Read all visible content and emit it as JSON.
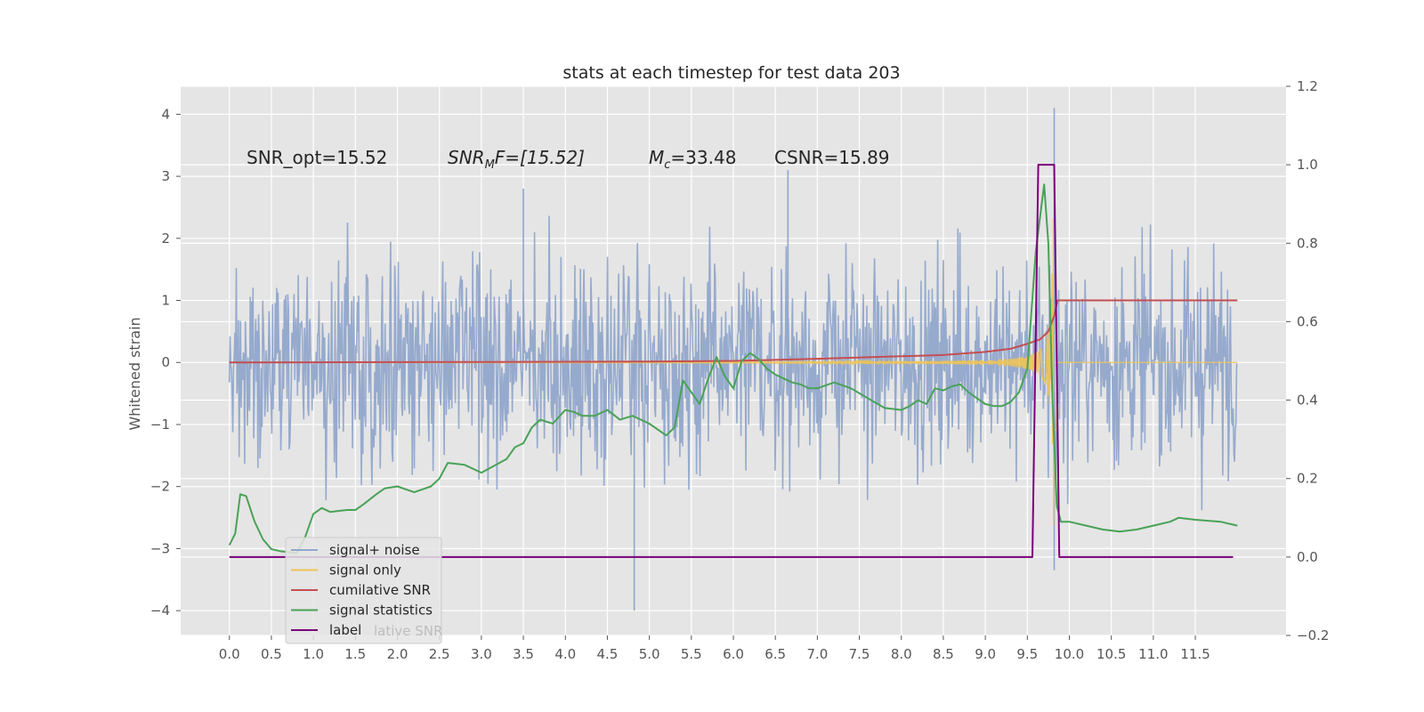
{
  "chart_data": {
    "type": "line",
    "title": "stats at each timestep for test data 203",
    "ylabel": "Whitened strain",
    "xlabel": "",
    "xlim": [
      -0.58,
      12.58
    ],
    "ylim": [
      -4.4,
      4.45
    ],
    "y2lim": [
      -0.2,
      1.2
    ],
    "xticks": [
      "0.0",
      "0.5",
      "1.0",
      "1.5",
      "2.0",
      "2.5",
      "3.0",
      "3.5",
      "4.0",
      "4.5",
      "5.0",
      "5.5",
      "6.0",
      "6.5",
      "7.0",
      "7.5",
      "8.0",
      "8.5",
      "9.0",
      "9.5",
      "10.0",
      "10.5",
      "11.0",
      "11.5"
    ],
    "yticks": [
      "4",
      "3",
      "2",
      "1",
      "0",
      "−1",
      "−2",
      "−3",
      "−4"
    ],
    "y2ticks": [
      "1.2",
      "1.0",
      "0.8",
      "0.6",
      "0.4",
      "0.2",
      "0.0",
      "−0.2"
    ],
    "grid": true,
    "legend_position": "lower-left",
    "annotations": {
      "snr_opt": "SNR_opt=15.52",
      "snr_mf_main": "SNR",
      "snr_mf_sub": "M",
      "snr_mf_rest": "F=[15.52]",
      "mc_main": "M",
      "mc_sub": "c",
      "mc_rest": "=33.48",
      "csnr": "CSNR=15.89"
    },
    "legend": {
      "items": [
        {
          "label": "signal+ noise",
          "color": "#91a6cb"
        },
        {
          "label": "signal only",
          "color": "#f0c455"
        },
        {
          "label": "cumilative SNR",
          "color": "#c44e52"
        },
        {
          "label": "signal statistics",
          "color": "#49a257"
        },
        {
          "label": "label",
          "color": "#7a007a"
        }
      ],
      "ghost_text": "lative SNR"
    },
    "series": [
      {
        "name": "signal+ noise",
        "axis": "left",
        "color": "#91a6cb",
        "description": "whitened strain, dense noise band",
        "x_range": [
          0,
          12.0
        ],
        "typical_envelope": [
          -1.6,
          1.7
        ],
        "spikes": [
          {
            "x": 4.82,
            "y": -4.0
          },
          {
            "x": 9.82,
            "y": 4.1
          },
          {
            "x": 6.65,
            "y": 3.1
          },
          {
            "x": 3.5,
            "y": 2.8
          },
          {
            "x": 9.82,
            "y": -3.35
          }
        ]
      },
      {
        "name": "signal only",
        "axis": "left",
        "color": "#f0c455",
        "description": "chirp waveform growing toward merger",
        "x_range": [
          0,
          12.0
        ],
        "peak_x": 9.8,
        "peak_amplitude": 2.8
      },
      {
        "name": "cumilative SNR",
        "axis": "left",
        "color": "#c44e52",
        "x": [
          0,
          1,
          2,
          3,
          4,
          5,
          6,
          7,
          8,
          8.5,
          9.0,
          9.3,
          9.5,
          9.65,
          9.75,
          9.82,
          9.86,
          10.0,
          12.0
        ],
        "values": [
          0,
          0.002,
          0.005,
          0.008,
          0.01,
          0.015,
          0.025,
          0.06,
          0.1,
          0.12,
          0.17,
          0.22,
          0.3,
          0.37,
          0.5,
          0.75,
          1.0,
          1.0,
          1.0
        ]
      },
      {
        "name": "signal statistics",
        "axis": "right",
        "color": "#49a257",
        "x": [
          0,
          0.07,
          0.13,
          0.2,
          0.3,
          0.4,
          0.5,
          0.6,
          0.8,
          0.9,
          1.0,
          1.1,
          1.2,
          1.4,
          1.5,
          1.6,
          1.75,
          1.85,
          2.0,
          2.2,
          2.4,
          2.5,
          2.6,
          2.8,
          3.0,
          3.3,
          3.4,
          3.5,
          3.6,
          3.7,
          3.85,
          4.0,
          4.1,
          4.2,
          4.35,
          4.5,
          4.65,
          4.8,
          5.0,
          5.2,
          5.3,
          5.4,
          5.5,
          5.6,
          5.7,
          5.8,
          5.9,
          6.0,
          6.1,
          6.2,
          6.3,
          6.4,
          6.5,
          6.6,
          6.7,
          6.8,
          6.9,
          7.0,
          7.2,
          7.4,
          7.6,
          7.8,
          8.0,
          8.1,
          8.2,
          8.3,
          8.4,
          8.5,
          8.6,
          8.7,
          8.8,
          8.9,
          9.0,
          9.1,
          9.2,
          9.3,
          9.4,
          9.5,
          9.6,
          9.7,
          9.75,
          9.8,
          9.85,
          9.9,
          9.95,
          10.0,
          10.2,
          10.4,
          10.6,
          10.8,
          11.0,
          11.2,
          11.3,
          11.5,
          11.8,
          12.0
        ],
        "values": [
          0.03,
          0.06,
          0.16,
          0.155,
          0.09,
          0.045,
          0.02,
          0.015,
          0.01,
          0.05,
          0.11,
          0.125,
          0.115,
          0.12,
          0.12,
          0.135,
          0.16,
          0.175,
          0.18,
          0.165,
          0.18,
          0.2,
          0.24,
          0.235,
          0.215,
          0.25,
          0.28,
          0.29,
          0.33,
          0.35,
          0.34,
          0.375,
          0.37,
          0.36,
          0.36,
          0.375,
          0.35,
          0.36,
          0.34,
          0.31,
          0.33,
          0.45,
          0.42,
          0.39,
          0.455,
          0.51,
          0.46,
          0.43,
          0.5,
          0.52,
          0.505,
          0.48,
          0.465,
          0.455,
          0.445,
          0.44,
          0.43,
          0.43,
          0.445,
          0.43,
          0.405,
          0.38,
          0.375,
          0.385,
          0.4,
          0.39,
          0.43,
          0.425,
          0.435,
          0.44,
          0.42,
          0.405,
          0.39,
          0.385,
          0.385,
          0.395,
          0.42,
          0.48,
          0.78,
          0.95,
          0.8,
          0.4,
          0.13,
          0.09,
          0.09,
          0.09,
          0.08,
          0.07,
          0.065,
          0.07,
          0.08,
          0.09,
          0.1,
          0.095,
          0.09,
          0.08
        ]
      },
      {
        "name": "label",
        "axis": "right",
        "color": "#7a007a",
        "x": [
          0,
          9.56,
          9.63,
          9.82,
          9.88,
          11.95
        ],
        "values": [
          0,
          0,
          1.0,
          1.0,
          0,
          0
        ]
      }
    ]
  }
}
